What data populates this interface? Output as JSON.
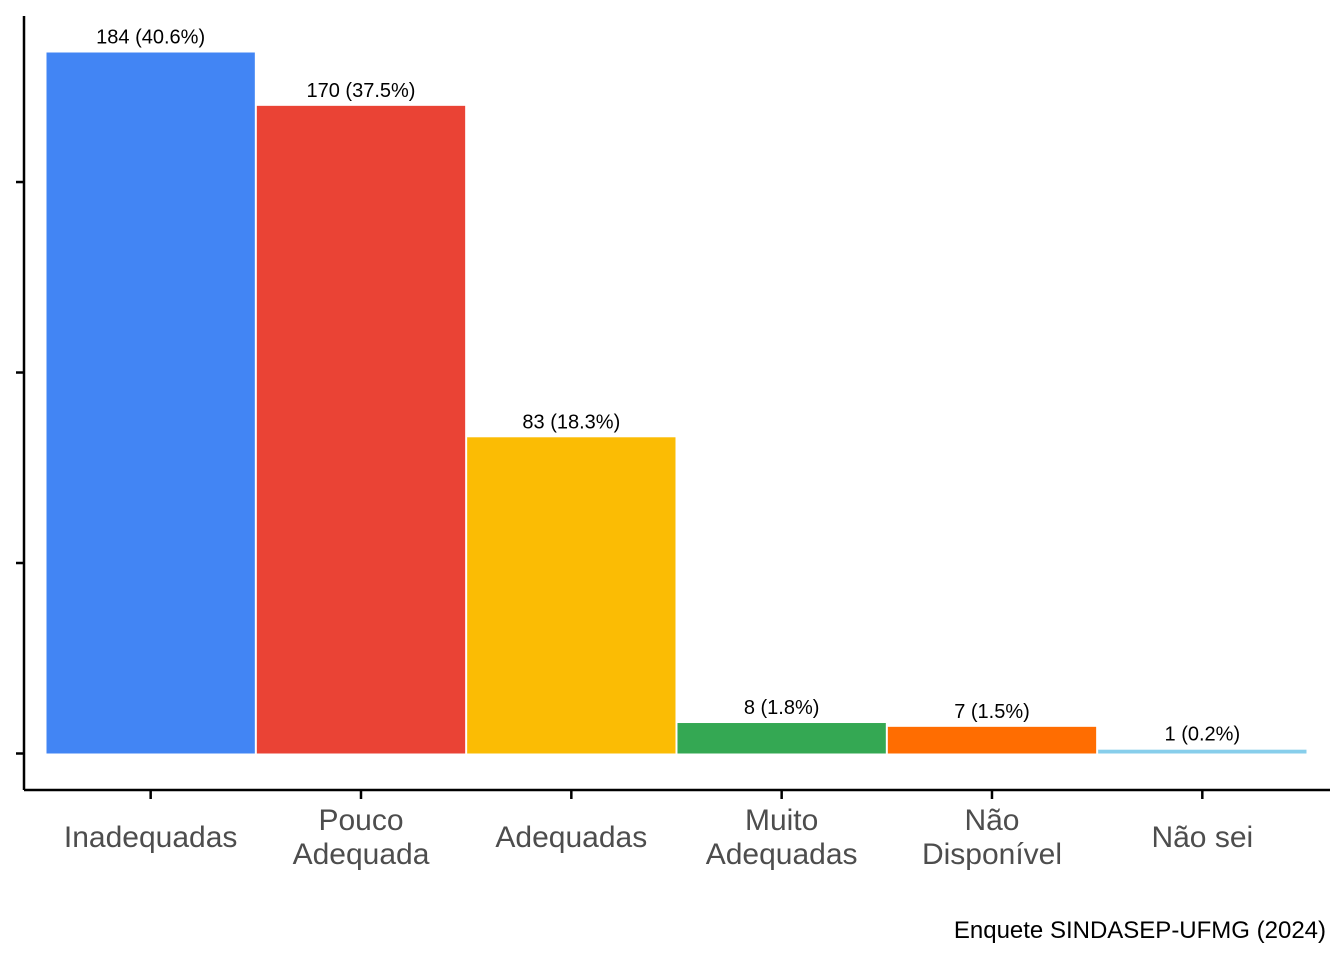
{
  "chart_data": {
    "type": "bar",
    "categories": [
      [
        "Inadequadas"
      ],
      [
        "Pouco",
        "Adequada"
      ],
      [
        "Adequadas"
      ],
      [
        "Muito",
        "Adequadas"
      ],
      [
        "Não",
        "Disponível"
      ],
      [
        "Não sei"
      ]
    ],
    "values": [
      184,
      170,
      83,
      8,
      7,
      1
    ],
    "data_labels": [
      "184 (40.6%)",
      "170 (37.5%)",
      "83 (18.3%)",
      "8 (1.8%)",
      "7 (1.5%)",
      "1 (0.2%)"
    ],
    "colors": [
      "#4285F4",
      "#EA4335",
      "#FBBC04",
      "#34A853",
      "#FF6D01",
      "#87CEEB"
    ],
    "ylim": [
      0,
      184
    ],
    "ytick_values": [
      0,
      50,
      100,
      150
    ],
    "y_tick_labels_shown": false,
    "grid": false,
    "caption": "Enquete SINDASEP-UFMG (2024)"
  }
}
